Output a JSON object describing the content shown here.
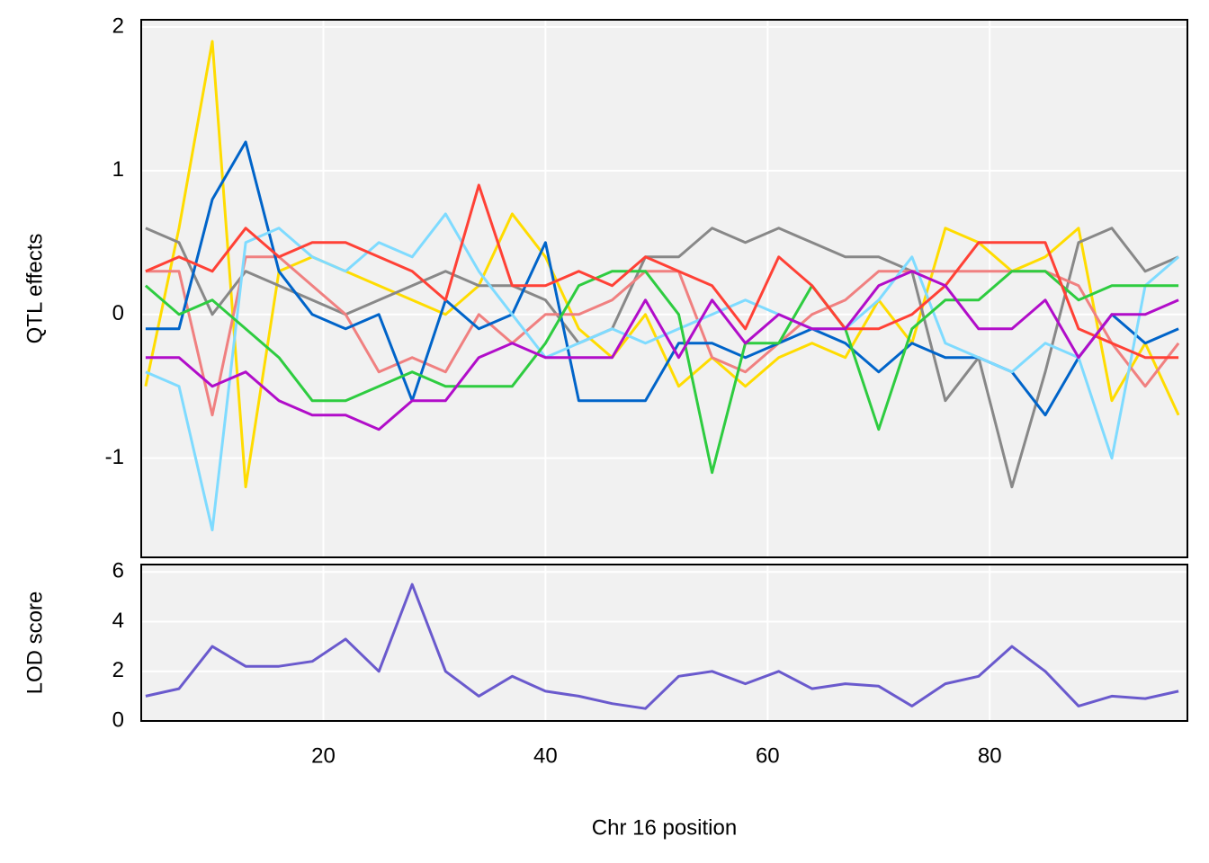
{
  "chart_data": [
    {
      "type": "line",
      "ylabel": "QTL effects",
      "x": [
        4,
        7,
        10,
        13,
        16,
        19,
        22,
        25,
        28,
        31,
        34,
        37,
        40,
        43,
        46,
        49,
        52,
        55,
        58,
        61,
        64,
        67,
        70,
        73,
        76,
        79,
        82,
        85,
        88,
        91,
        94,
        97
      ],
      "series": [
        {
          "color": "#FFDC00",
          "values": [
            -0.5,
            0.6,
            1.9,
            -1.2,
            0.3,
            0.4,
            0.3,
            0.2,
            0.1,
            0.0,
            0.2,
            0.7,
            0.4,
            -0.1,
            -0.3,
            0.0,
            -0.5,
            -0.3,
            -0.5,
            -0.3,
            -0.2,
            -0.3,
            0.1,
            -0.2,
            0.6,
            0.5,
            0.3,
            0.4,
            0.6,
            -0.6,
            -0.2,
            -0.7
          ]
        },
        {
          "color": "#888888",
          "values": [
            0.6,
            0.5,
            0.0,
            0.3,
            0.2,
            0.1,
            0.0,
            0.1,
            0.2,
            0.3,
            0.2,
            0.2,
            0.1,
            -0.2,
            -0.1,
            0.4,
            0.4,
            0.6,
            0.5,
            0.6,
            0.5,
            0.4,
            0.4,
            0.3,
            -0.6,
            -0.3,
            -1.2,
            -0.4,
            0.5,
            0.6,
            0.3,
            0.4
          ]
        },
        {
          "color": "#F08080",
          "values": [
            0.3,
            0.3,
            -0.7,
            0.4,
            0.4,
            0.2,
            0.0,
            -0.4,
            -0.3,
            -0.4,
            0.0,
            -0.2,
            0.0,
            0.0,
            0.1,
            0.3,
            0.3,
            -0.3,
            -0.4,
            -0.2,
            0.0,
            0.1,
            0.3,
            0.3,
            0.3,
            0.3,
            0.3,
            0.3,
            0.2,
            -0.2,
            -0.5,
            -0.2
          ]
        },
        {
          "color": "#0064C9",
          "values": [
            -0.1,
            -0.1,
            0.8,
            1.2,
            0.3,
            0.0,
            -0.1,
            0.0,
            -0.6,
            0.1,
            -0.1,
            0.0,
            0.5,
            -0.6,
            -0.6,
            -0.6,
            -0.2,
            -0.2,
            -0.3,
            -0.2,
            -0.1,
            -0.2,
            -0.4,
            -0.2,
            -0.3,
            -0.3,
            -0.4,
            -0.7,
            -0.3,
            0.0,
            -0.2,
            -0.1
          ]
        },
        {
          "color": "#7FDBFF",
          "values": [
            -0.4,
            -0.5,
            -1.5,
            0.5,
            0.6,
            0.4,
            0.3,
            0.5,
            0.4,
            0.7,
            0.3,
            0.0,
            -0.3,
            -0.2,
            -0.1,
            -0.2,
            -0.1,
            0.0,
            0.1,
            0.0,
            -0.1,
            -0.1,
            0.1,
            0.4,
            -0.2,
            -0.3,
            -0.4,
            -0.2,
            -0.3,
            -1.0,
            0.2,
            0.4
          ]
        },
        {
          "color": "#2ECC40",
          "values": [
            0.2,
            0.0,
            0.1,
            -0.1,
            -0.3,
            -0.6,
            -0.6,
            -0.5,
            -0.4,
            -0.5,
            -0.5,
            -0.5,
            -0.2,
            0.2,
            0.3,
            0.3,
            0.0,
            -1.1,
            -0.2,
            -0.2,
            0.2,
            -0.1,
            -0.8,
            -0.1,
            0.1,
            0.1,
            0.3,
            0.3,
            0.1,
            0.2,
            0.2,
            0.2
          ]
        },
        {
          "color": "#FF4136",
          "values": [
            0.3,
            0.4,
            0.3,
            0.6,
            0.4,
            0.5,
            0.5,
            0.4,
            0.3,
            0.1,
            0.9,
            0.2,
            0.2,
            0.3,
            0.2,
            0.4,
            0.3,
            0.2,
            -0.1,
            0.4,
            0.2,
            -0.1,
            -0.1,
            0.0,
            0.2,
            0.5,
            0.5,
            0.5,
            -0.1,
            -0.2,
            -0.3,
            -0.3
          ]
        },
        {
          "color": "#B10DC9",
          "values": [
            -0.3,
            -0.3,
            -0.5,
            -0.4,
            -0.6,
            -0.7,
            -0.7,
            -0.8,
            -0.6,
            -0.6,
            -0.3,
            -0.2,
            -0.3,
            -0.3,
            -0.3,
            0.1,
            -0.3,
            0.1,
            -0.2,
            0.0,
            -0.1,
            -0.1,
            0.2,
            0.3,
            0.2,
            -0.1,
            -0.1,
            0.1,
            -0.3,
            0.0,
            0.0,
            0.1
          ]
        }
      ],
      "xlim": [
        3.6,
        97.8
      ],
      "xticks": [
        20,
        40,
        60,
        80
      ],
      "ylim": [
        -1.69,
        2.05
      ],
      "yticks": [
        -1,
        0,
        1,
        2
      ],
      "grid": true
    },
    {
      "type": "line",
      "ylabel": "LOD score",
      "xlabel": "Chr 16 position",
      "x": [
        4,
        7,
        10,
        13,
        16,
        19,
        22,
        25,
        28,
        31,
        34,
        37,
        40,
        43,
        46,
        49,
        52,
        55,
        58,
        61,
        64,
        67,
        70,
        73,
        76,
        79,
        82,
        85,
        88,
        91,
        94,
        97
      ],
      "series": [
        {
          "color": "#6A5ACD",
          "values": [
            1.0,
            1.3,
            3.0,
            2.2,
            2.2,
            2.4,
            3.3,
            2.0,
            5.5,
            2.0,
            1.0,
            1.8,
            1.2,
            1.0,
            0.7,
            0.5,
            1.8,
            2.0,
            1.5,
            2.0,
            1.3,
            1.5,
            1.4,
            0.6,
            1.5,
            1.8,
            3.0,
            2.0,
            0.6,
            1.0,
            0.9,
            1.2
          ]
        }
      ],
      "xlim": [
        3.6,
        97.8
      ],
      "xticks": [
        20,
        40,
        60,
        80
      ],
      "ylim": [
        0,
        6.3
      ],
      "yticks": [
        0,
        2,
        4,
        6
      ],
      "grid": true
    }
  ]
}
